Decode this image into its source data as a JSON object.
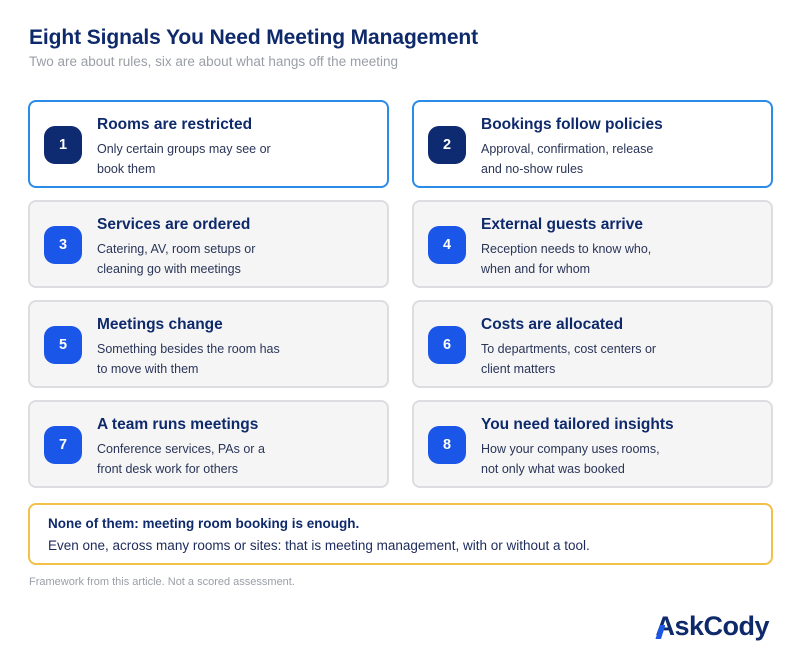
{
  "header": {
    "title": "Eight Signals You Need Meeting Management",
    "subtitle": "Two are about rules, six are about what hangs off the meeting"
  },
  "signals": [
    {
      "number": "1",
      "title": "Rooms are restricted",
      "description": "Only certain groups may see or book them",
      "highlighted": true
    },
    {
      "number": "2",
      "title": "Bookings follow policies",
      "description": "Approval, confirmation, release and no-show rules",
      "highlighted": true
    },
    {
      "number": "3",
      "title": "Services are ordered",
      "description": "Catering, AV, room setups or cleaning go with meetings",
      "highlighted": false
    },
    {
      "number": "4",
      "title": "External guests arrive",
      "description": "Reception needs to know who, when and for whom",
      "highlighted": false
    },
    {
      "number": "5",
      "title": "Meetings change",
      "description": "Something besides the room has to move with them",
      "highlighted": false
    },
    {
      "number": "6",
      "title": "Costs are allocated",
      "description": "To departments, cost centers or client matters",
      "highlighted": false
    },
    {
      "number": "7",
      "title": "A team runs meetings",
      "description": "Conference services, PAs or a front desk work for others",
      "highlighted": false
    },
    {
      "number": "8",
      "title": "You need tailored insights",
      "description": "How your company uses rooms, not only what was booked",
      "highlighted": false
    }
  ],
  "callout": {
    "title": "None of them: meeting room booking is enough.",
    "text": "Even one, across many rooms or sites: that is meeting management, with or without a tool."
  },
  "footnote": "Framework from this article. Not a scored assessment.",
  "logo": {
    "text": "AskCody"
  },
  "colors": {
    "navy": "#0f2a6b",
    "blue": "#1a56e8",
    "highlight_border": "#2a8be8",
    "callout_border": "#f2c14a"
  }
}
